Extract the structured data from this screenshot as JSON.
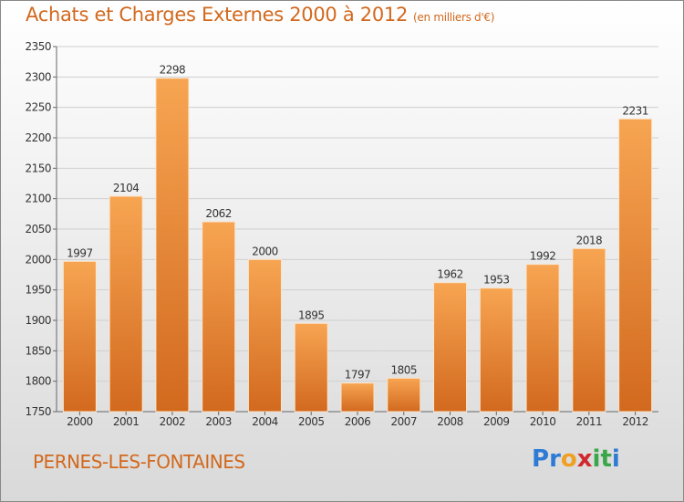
{
  "header": {
    "title": "Achats et Charges Externes 2000 à 2012",
    "unit": "(en milliers d'€)"
  },
  "footer": {
    "city": "PERNES-LES-FONTAINES",
    "logo": [
      "P",
      "r",
      "o",
      "x",
      "i",
      "t",
      "i"
    ],
    "logo_colors": [
      "#2e7bd6",
      "#2e7bd6",
      "#f0a020",
      "#d0282e",
      "#3aa64a",
      "#3aa64a",
      "#2e7bd6"
    ]
  },
  "chart_data": {
    "type": "bar",
    "title": "Achats et Charges Externes 2000 à 2012",
    "categories": [
      "2000",
      "2001",
      "2002",
      "2003",
      "2004",
      "2005",
      "2006",
      "2007",
      "2008",
      "2009",
      "2010",
      "2011",
      "2012"
    ],
    "values": [
      1997,
      2104,
      2298,
      2062,
      2000,
      1895,
      1797,
      1805,
      1962,
      1953,
      1992,
      2018,
      2231
    ],
    "ylim": [
      1750,
      2350
    ],
    "yticks": [
      1750,
      1800,
      1850,
      1900,
      1950,
      2000,
      2050,
      2100,
      2150,
      2200,
      2250,
      2300,
      2350
    ],
    "grid": true,
    "bar_color_top": "#f7a552",
    "bar_color_bottom": "#d2691e"
  }
}
